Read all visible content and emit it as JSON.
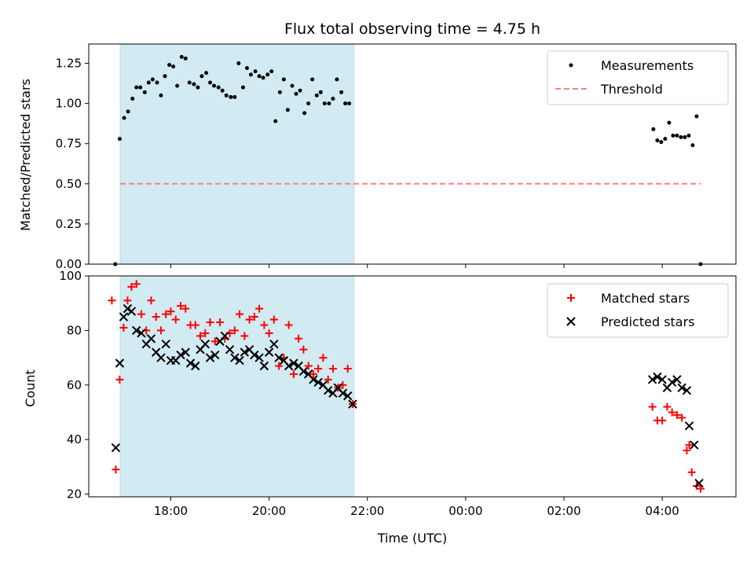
{
  "chart_data": [
    {
      "type": "scatter",
      "title": "Flux total observing time = 4.75 h",
      "xlabel": "",
      "ylabel": "Matched/Predicted stars",
      "xlim": [
        16.33,
        29.5
      ],
      "ylim": [
        0,
        1.37
      ],
      "xticks": [
        18,
        20,
        22,
        24,
        26,
        28
      ],
      "xticklabels": [
        "",
        "",
        "",
        "",
        "",
        ""
      ],
      "yticks": [
        0,
        0.25,
        0.5,
        0.75,
        1.0,
        1.25
      ],
      "yticklabels": [
        "0.00",
        "0.25",
        "0.50",
        "0.75",
        "1.00",
        "1.25"
      ],
      "shaded_region": {
        "x": [
          16.97,
          21.73
        ],
        "color": "#add8e6"
      },
      "legend": {
        "placement": "upper right",
        "entries": [
          "Measurements",
          "Threshold"
        ]
      },
      "series": [
        {
          "name": "Measurements",
          "marker": "dot",
          "color": "#000000",
          "x": [
            16.87,
            16.96,
            17.05,
            17.13,
            17.22,
            17.3,
            17.38,
            17.47,
            17.55,
            17.63,
            17.72,
            17.8,
            17.88,
            17.97,
            18.05,
            18.13,
            18.22,
            18.3,
            18.38,
            18.47,
            18.55,
            18.63,
            18.72,
            18.8,
            18.88,
            18.97,
            19.05,
            19.13,
            19.22,
            19.3,
            19.38,
            19.47,
            19.55,
            19.63,
            19.72,
            19.8,
            19.88,
            19.97,
            20.05,
            20.13,
            20.22,
            20.3,
            20.38,
            20.47,
            20.55,
            20.63,
            20.72,
            20.8,
            20.88,
            20.97,
            21.05,
            21.13,
            21.22,
            21.3,
            21.38,
            21.47,
            21.55,
            21.63,
            27.82,
            27.9,
            27.98,
            28.06,
            28.14,
            28.22,
            28.3,
            28.38,
            28.46,
            28.54,
            28.62,
            28.7,
            28.78
          ],
          "y": [
            0.0,
            0.78,
            0.91,
            0.95,
            1.03,
            1.1,
            1.1,
            1.07,
            1.13,
            1.15,
            1.13,
            1.05,
            1.17,
            1.24,
            1.23,
            1.11,
            1.29,
            1.28,
            1.13,
            1.12,
            1.1,
            1.17,
            1.19,
            1.13,
            1.11,
            1.1,
            1.08,
            1.05,
            1.04,
            1.04,
            1.25,
            1.1,
            1.22,
            1.18,
            1.2,
            1.17,
            1.16,
            1.18,
            1.2,
            0.89,
            1.07,
            1.15,
            0.96,
            1.11,
            1.06,
            1.08,
            0.94,
            1.0,
            1.15,
            1.05,
            1.07,
            1.0,
            1.0,
            1.03,
            1.15,
            1.07,
            1.0,
            1.0,
            0.84,
            0.77,
            0.76,
            0.78,
            0.88,
            0.8,
            0.8,
            0.79,
            0.79,
            0.8,
            0.74,
            0.92,
            0.0
          ]
        },
        {
          "name": "Threshold",
          "marker": "dashed-line",
          "color": "#ff7f7f",
          "x": [
            16.97,
            28.78
          ],
          "y": [
            0.5,
            0.5
          ]
        }
      ]
    },
    {
      "type": "scatter",
      "title": "",
      "xlabel": "Time (UTC)",
      "ylabel": "Count",
      "xlim": [
        16.33,
        29.5
      ],
      "ylim": [
        19,
        100
      ],
      "xticks": [
        18,
        20,
        22,
        24,
        26,
        28
      ],
      "xticklabels": [
        "18:00",
        "20:00",
        "22:00",
        "00:00",
        "02:00",
        "04:00"
      ],
      "yticks": [
        20,
        40,
        60,
        80,
        100
      ],
      "yticklabels": [
        "20",
        "40",
        "60",
        "80",
        "100"
      ],
      "shaded_region": {
        "x": [
          16.97,
          21.73
        ],
        "color": "#add8e6"
      },
      "legend": {
        "placement": "upper right",
        "entries": [
          "Matched stars",
          "Predicted stars"
        ]
      },
      "series": [
        {
          "name": "Matched stars",
          "marker": "plus",
          "color": "#ff0000",
          "x": [
            16.8,
            16.88,
            16.96,
            17.04,
            17.12,
            17.2,
            17.3,
            17.4,
            17.5,
            17.6,
            17.7,
            17.8,
            17.9,
            18.0,
            18.1,
            18.2,
            18.3,
            18.4,
            18.5,
            18.6,
            18.7,
            18.8,
            18.9,
            19.0,
            19.1,
            19.2,
            19.3,
            19.4,
            19.5,
            19.6,
            19.7,
            19.8,
            19.9,
            20.0,
            20.1,
            20.2,
            20.3,
            20.4,
            20.5,
            20.6,
            20.7,
            20.8,
            20.9,
            21.0,
            21.1,
            21.2,
            21.3,
            21.4,
            21.5,
            21.6,
            21.7,
            27.8,
            27.9,
            28.0,
            28.1,
            28.2,
            28.3,
            28.4,
            28.5,
            28.55,
            28.6,
            28.7,
            28.78
          ],
          "y": [
            91,
            29,
            62,
            81,
            91,
            96,
            97,
            86,
            80,
            91,
            85,
            80,
            86,
            87,
            84,
            89,
            88,
            82,
            82,
            78,
            79,
            83,
            76,
            83,
            77,
            79,
            80,
            86,
            78,
            84,
            85,
            88,
            82,
            79,
            84,
            67,
            70,
            82,
            64,
            77,
            73,
            67,
            64,
            66,
            70,
            62,
            66,
            59,
            60,
            66,
            53,
            52,
            47,
            47,
            52,
            50,
            49,
            48,
            36,
            38,
            28,
            23,
            22
          ]
        },
        {
          "name": "Predicted stars",
          "marker": "x",
          "color": "#000000",
          "x": [
            16.88,
            16.96,
            17.04,
            17.12,
            17.2,
            17.3,
            17.4,
            17.5,
            17.6,
            17.7,
            17.8,
            17.9,
            18.0,
            18.1,
            18.2,
            18.3,
            18.4,
            18.5,
            18.6,
            18.7,
            18.8,
            18.9,
            19.0,
            19.1,
            19.2,
            19.3,
            19.4,
            19.5,
            19.6,
            19.7,
            19.8,
            19.9,
            20.0,
            20.1,
            20.2,
            20.3,
            20.4,
            20.5,
            20.6,
            20.7,
            20.8,
            20.9,
            21.0,
            21.1,
            21.2,
            21.3,
            21.4,
            21.5,
            21.6,
            21.7,
            27.8,
            27.9,
            28.0,
            28.1,
            28.2,
            28.3,
            28.4,
            28.5,
            28.55,
            28.65,
            28.75
          ],
          "y": [
            37,
            68,
            85,
            88,
            87,
            80,
            79,
            75,
            77,
            72,
            70,
            75,
            69,
            69,
            71,
            72,
            68,
            67,
            73,
            75,
            70,
            71,
            76,
            78,
            73,
            70,
            69,
            72,
            73,
            71,
            70,
            67,
            72,
            75,
            70,
            69,
            67,
            68,
            67,
            65,
            64,
            62,
            61,
            60,
            58,
            57,
            59,
            57,
            56,
            53,
            62,
            63,
            62,
            59,
            61,
            62,
            59,
            58,
            45,
            38,
            24
          ]
        }
      ]
    }
  ]
}
